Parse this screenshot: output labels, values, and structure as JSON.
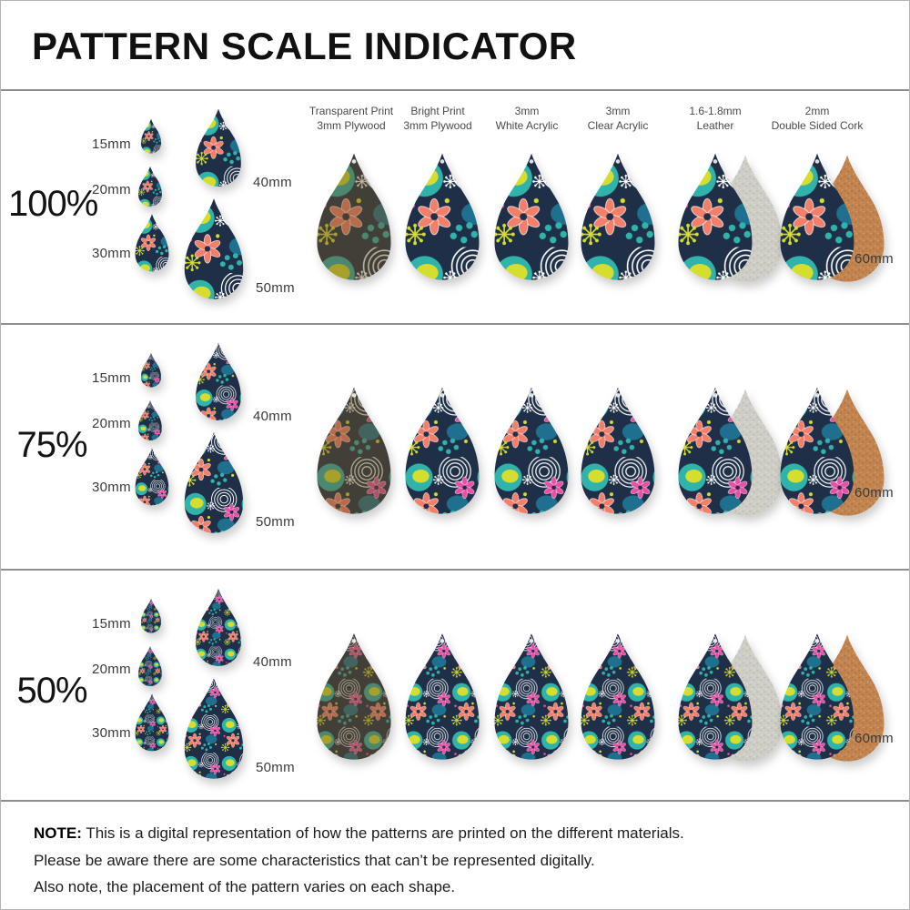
{
  "title": "PATTERN SCALE INDICATOR",
  "rows": [
    {
      "scale": "100%"
    },
    {
      "scale": "75%"
    },
    {
      "scale": "50%"
    }
  ],
  "sizes": [
    "15mm",
    "20mm",
    "30mm",
    "40mm",
    "50mm"
  ],
  "size_large": "60mm",
  "materials": [
    {
      "line1": "Transparent Print",
      "line2": "3mm Plywood"
    },
    {
      "line1": "Bright Print",
      "line2": "3mm Plywood"
    },
    {
      "line1": "3mm",
      "line2": "White Acrylic"
    },
    {
      "line1": "3mm",
      "line2": "Clear Acrylic"
    },
    {
      "line1": "1.6-1.8mm",
      "line2": "Leather"
    },
    {
      "line1": "2mm",
      "line2": "Double Sided Cork"
    }
  ],
  "note": {
    "label": "NOTE:",
    "line1": "This is a digital representation of how the patterns are printed on the different materials.",
    "line2": "Please be aware there are some characteristics that can’t be represented digitally.",
    "line3": "Also note, the placement of the pattern varies on each shape."
  },
  "colors": {
    "navy": "#1e2f47",
    "teal": "#2fb3ab",
    "dark_teal": "#1f6f8e",
    "chartreuse": "#d5de2f",
    "pink": "#e84fa5",
    "coral": "#f37f6a",
    "white_detail": "#ffffff",
    "plywood_tint": "#6f5426",
    "leather_base": "#cdccc5",
    "leather_speckle": "#b9b8b0",
    "cork_base": "#c18450",
    "cork_speckle": "#a96e38"
  }
}
